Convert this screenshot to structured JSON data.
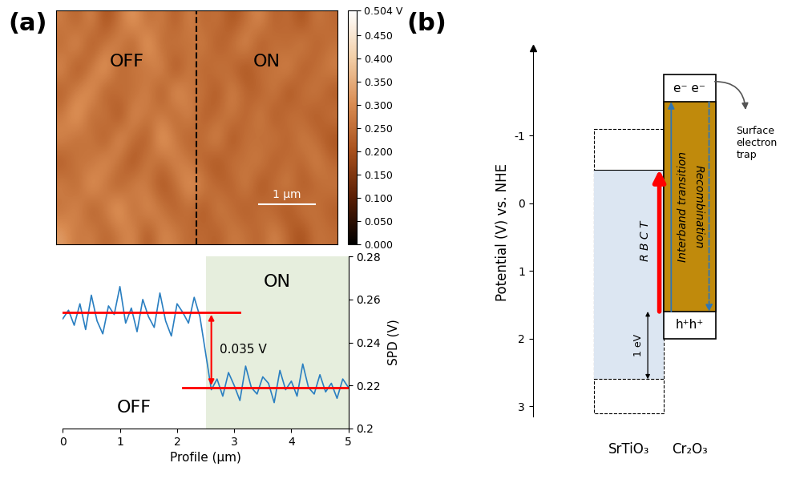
{
  "panel_labels": [
    "(a)",
    "(b)"
  ],
  "chart_data": [
    {
      "type": "heatmap",
      "xlim": [
        0,
        5
      ],
      "ylim": [
        0,
        4.3
      ],
      "tick_labels": false,
      "divider": 2.5,
      "region_labels": [
        "OFF",
        "ON"
      ],
      "scale_bar": {
        "label": "1 µm",
        "length": 1
      },
      "colorbar": {
        "range": [
          0,
          0.504
        ],
        "ticks": [
          {
            "value": 0,
            "label": "0.000"
          },
          {
            "value": 0.05,
            "label": "0.050"
          },
          {
            "value": 0.1,
            "label": "0.100"
          },
          {
            "value": 0.15,
            "label": "0.150"
          },
          {
            "value": 0.2,
            "label": "0.200"
          },
          {
            "value": 0.25,
            "label": "0.250"
          },
          {
            "value": 0.3,
            "label": "0.300"
          },
          {
            "value": 0.35,
            "label": "0.350"
          },
          {
            "value": 0.4,
            "label": "0.400"
          },
          {
            "value": 0.45,
            "label": "0.450"
          },
          {
            "value": 0.504,
            "label": "0.504 V"
          }
        ]
      },
      "cells": [
        [
          0.28,
          0.22,
          0.31,
          0.19,
          0.26,
          0.34,
          0.24,
          0.29,
          0.21,
          0.3,
          0.23,
          0.27,
          0.2,
          0.25,
          0.31,
          0.22,
          0.26,
          0.19,
          0.28,
          0.24
        ],
        [
          0.24,
          0.33,
          0.2,
          0.27,
          0.3,
          0.21,
          0.36,
          0.23,
          0.28,
          0.25,
          0.29,
          0.21,
          0.26,
          0.32,
          0.2,
          0.27,
          0.23,
          0.3,
          0.22,
          0.26
        ],
        [
          0.31,
          0.19,
          0.27,
          0.35,
          0.22,
          0.28,
          0.25,
          0.32,
          0.18,
          0.29,
          0.22,
          0.28,
          0.24,
          0.19,
          0.27,
          0.25,
          0.31,
          0.21,
          0.25,
          0.29
        ],
        [
          0.22,
          0.29,
          0.33,
          0.21,
          0.27,
          0.24,
          0.3,
          0.2,
          0.34,
          0.26,
          0.27,
          0.2,
          0.3,
          0.24,
          0.22,
          0.29,
          0.19,
          0.26,
          0.28,
          0.21
        ],
        [
          0.27,
          0.35,
          0.23,
          0.29,
          0.18,
          0.32,
          0.26,
          0.28,
          0.23,
          0.31,
          0.21,
          0.25,
          0.28,
          0.22,
          0.3,
          0.2,
          0.27,
          0.24,
          0.21,
          0.27
        ],
        [
          0.3,
          0.24,
          0.28,
          0.2,
          0.33,
          0.25,
          0.21,
          0.35,
          0.27,
          0.22,
          0.26,
          0.31,
          0.19,
          0.27,
          0.24,
          0.28,
          0.22,
          0.29,
          0.25,
          0.2
        ],
        [
          0.21,
          0.28,
          0.25,
          0.32,
          0.26,
          0.19,
          0.29,
          0.24,
          0.3,
          0.27,
          0.23,
          0.2,
          0.27,
          0.25,
          0.29,
          0.21,
          0.26,
          0.23,
          0.3,
          0.24
        ],
        [
          0.29,
          0.23,
          0.34,
          0.26,
          0.22,
          0.3,
          0.27,
          0.2,
          0.25,
          0.33,
          0.28,
          0.24,
          0.22,
          0.3,
          0.19,
          0.26,
          0.29,
          0.21,
          0.24,
          0.27
        ],
        [
          0.25,
          0.31,
          0.21,
          0.28,
          0.35,
          0.23,
          0.32,
          0.27,
          0.22,
          0.26,
          0.2,
          0.29,
          0.25,
          0.21,
          0.27,
          0.23,
          0.2,
          0.28,
          0.26,
          0.22
        ],
        [
          0.33,
          0.26,
          0.29,
          0.23,
          0.27,
          0.31,
          0.2,
          0.3,
          0.28,
          0.24,
          0.25,
          0.22,
          0.28,
          0.26,
          0.23,
          0.3,
          0.24,
          0.19,
          0.27,
          0.25
        ]
      ]
    },
    {
      "type": "line",
      "xlabel": "Profile (µm)",
      "ylabel": "SPD (V)",
      "xlim": [
        0,
        5
      ],
      "xticks": [
        0,
        1,
        2,
        3,
        4,
        5
      ],
      "ylim": [
        0.2,
        0.28
      ],
      "yticks": [
        0.2,
        0.22,
        0.24,
        0.26,
        0.28
      ],
      "color": "#2a7fc1",
      "x": [
        0,
        0.1,
        0.2,
        0.3,
        0.4,
        0.5,
        0.6,
        0.7,
        0.8,
        0.9,
        1,
        1.1,
        1.2,
        1.3,
        1.4,
        1.5,
        1.6,
        1.7,
        1.8,
        1.9,
        2,
        2.1,
        2.2,
        2.3,
        2.4,
        2.5,
        2.6,
        2.7,
        2.8,
        2.9,
        3,
        3.1,
        3.2,
        3.3,
        3.4,
        3.5,
        3.6,
        3.7,
        3.8,
        3.9,
        4,
        4.1,
        4.2,
        4.3,
        4.4,
        4.5,
        4.6,
        4.7,
        4.8,
        4.9,
        5
      ],
      "values": [
        0.251,
        0.255,
        0.248,
        0.258,
        0.246,
        0.262,
        0.25,
        0.244,
        0.257,
        0.253,
        0.266,
        0.249,
        0.256,
        0.245,
        0.26,
        0.252,
        0.247,
        0.263,
        0.25,
        0.243,
        0.258,
        0.254,
        0.249,
        0.261,
        0.252,
        0.235,
        0.218,
        0.223,
        0.215,
        0.226,
        0.22,
        0.213,
        0.229,
        0.219,
        0.216,
        0.224,
        0.221,
        0.212,
        0.227,
        0.218,
        0.222,
        0.215,
        0.23,
        0.219,
        0.216,
        0.225,
        0.217,
        0.221,
        0.214,
        0.223,
        0.219
      ],
      "regions": [
        {
          "label": "OFF",
          "x": [
            0,
            2.5
          ]
        },
        {
          "label": "ON",
          "x": [
            2.5,
            5
          ],
          "color": "#e6eedd"
        }
      ],
      "levels": [
        {
          "value": 0.254,
          "x": [
            0,
            3.1
          ],
          "color": "#ff0000"
        },
        {
          "value": 0.219,
          "x": [
            2.1,
            5
          ],
          "color": "#ff0000"
        }
      ],
      "difference": {
        "label": "0.035 V",
        "from": 0.254,
        "to": 0.219,
        "color": "#ff0000"
      }
    },
    {
      "type": "band_diagram",
      "ylabel": "Potential (V) vs. NHE",
      "ylim": [
        3.15,
        -2.3
      ],
      "yticks": [
        -1,
        0,
        1,
        2,
        3
      ],
      "materials": [
        {
          "name": "SrTiO₃",
          "cb": -0.5,
          "vb": 2.6,
          "outer": [
            -1.1,
            3.1
          ],
          "color": "#dce6f2"
        },
        {
          "name": "Cr₂O₃",
          "cb": -1.5,
          "vb": 1.6,
          "outer": [
            -1.9,
            2.0
          ],
          "color": "#c08a0c",
          "cb_label": "e⁻ e⁻",
          "vb_label": "h⁺h⁺"
        }
      ],
      "arrows": [
        {
          "label": "R B C T",
          "from": 1.6,
          "to": -0.5,
          "color": "#ff0000",
          "line_style": "solid"
        },
        {
          "label": "Interband transition",
          "from": 1.6,
          "to": -1.5,
          "color": "#2e75b6",
          "line_style": "solid"
        },
        {
          "label": "Recombination",
          "from": -1.5,
          "to": 1.6,
          "color": "#2e75b6",
          "line_style": "dashed"
        }
      ],
      "gap": {
        "label": "1 eV",
        "from": 1.6,
        "to": 2.6
      },
      "annotation": "Surface\nelectron\ntrap"
    }
  ]
}
